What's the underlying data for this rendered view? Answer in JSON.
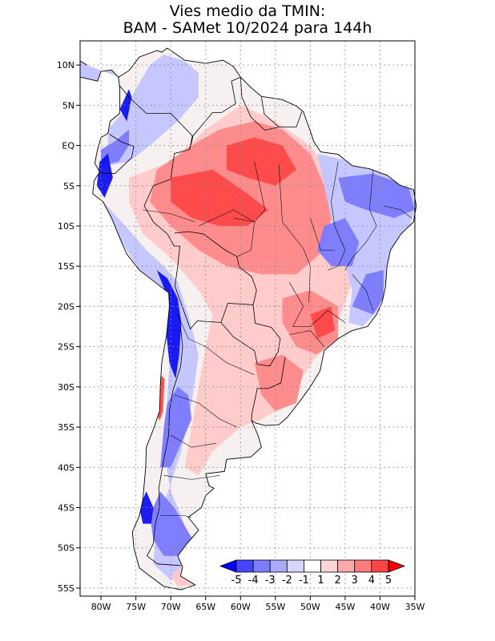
{
  "title": {
    "line1": "Vies medio da TMIN:",
    "line2": "BAM - SAMet 10/2024  para 144h"
  },
  "map": {
    "lat_range": [
      -56,
      13
    ],
    "lon_range": [
      -83,
      -35
    ],
    "lat_ticks": [
      {
        "value": 10,
        "label": "10N"
      },
      {
        "value": 5,
        "label": "5N"
      },
      {
        "value": 0,
        "label": "EQ"
      },
      {
        "value": -5,
        "label": "5S"
      },
      {
        "value": -10,
        "label": "10S"
      },
      {
        "value": -15,
        "label": "15S"
      },
      {
        "value": -20,
        "label": "20S"
      },
      {
        "value": -25,
        "label": "25S"
      },
      {
        "value": -30,
        "label": "30S"
      },
      {
        "value": -35,
        "label": "35S"
      },
      {
        "value": -40,
        "label": "40S"
      },
      {
        "value": -45,
        "label": "45S"
      },
      {
        "value": -50,
        "label": "50S"
      },
      {
        "value": -55,
        "label": "55S"
      }
    ],
    "lon_ticks": [
      {
        "value": -80,
        "label": "80W"
      },
      {
        "value": -75,
        "label": "75W"
      },
      {
        "value": -70,
        "label": "70W"
      },
      {
        "value": -65,
        "label": "65W"
      },
      {
        "value": -60,
        "label": "60W"
      },
      {
        "value": -55,
        "label": "55W"
      },
      {
        "value": -50,
        "label": "50W"
      },
      {
        "value": -45,
        "label": "45W"
      },
      {
        "value": -40,
        "label": "40W"
      },
      {
        "value": -35,
        "label": "35W"
      }
    ]
  },
  "colorbar": {
    "labels": [
      "-5",
      "-4",
      "-3",
      "-2",
      "-1",
      "1",
      "2",
      "3",
      "4",
      "5"
    ],
    "colors": [
      "#0000ff",
      "#4646ff",
      "#7c7cff",
      "#aaaaff",
      "#d6d6ff",
      "#ffffff",
      "#ffd6d6",
      "#ffaaaa",
      "#ff7c7c",
      "#ff4646",
      "#ff0000"
    ]
  },
  "colors": {
    "neg_strong": "#1010f0",
    "neg_mid": "#7a7aff",
    "neg_light": "#c4c4ff",
    "pos_light": "#ffc8c8",
    "pos_mid": "#ff8888",
    "pos_strong": "#ff4848",
    "land_neutral": "#f6f0f0"
  }
}
